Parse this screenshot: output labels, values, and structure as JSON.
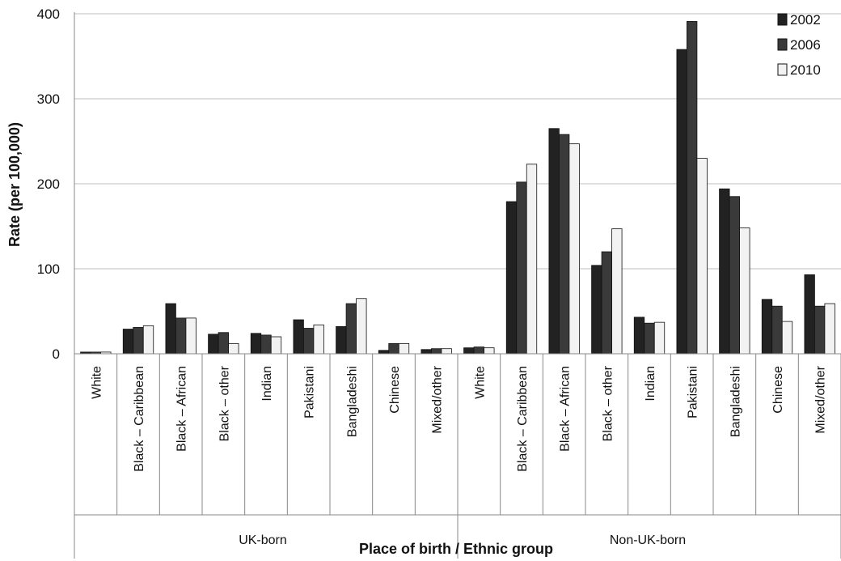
{
  "chart_data": {
    "type": "bar",
    "title": "",
    "xlabel": "Place of birth / Ethnic group",
    "ylabel": "Rate (per 100,000)",
    "ylim": [
      0,
      400
    ],
    "yticks": [
      "0",
      "100",
      "200",
      "300",
      "400"
    ],
    "grid": true,
    "legend_position": "top-right",
    "groups": [
      "UK-born",
      "Non-UK-born"
    ],
    "categories": [
      "White",
      "Black – Caribbean",
      "Black – African",
      "Black – other",
      "Indian",
      "Pakistani",
      "Bangladeshi",
      "Chinese",
      "Mixed/other",
      "White",
      "Black – Caribbean",
      "Black – African",
      "Black – other",
      "Indian",
      "Pakistani",
      "Bangladeshi",
      "Chinese",
      "Mixed/other"
    ],
    "series": [
      {
        "name": "2002",
        "color": "#222222",
        "values": [
          2,
          29,
          59,
          23,
          24,
          40,
          32,
          4,
          5,
          7,
          179,
          265,
          104,
          43,
          358,
          194,
          64,
          93
        ]
      },
      {
        "name": "2006",
        "color": "#3a3a3a",
        "values": [
          2,
          31,
          42,
          25,
          22,
          30,
          59,
          12,
          6,
          8,
          202,
          258,
          120,
          36,
          391,
          185,
          56,
          56
        ]
      },
      {
        "name": "2010",
        "color": "#f2f2f2",
        "values": [
          2,
          33,
          42,
          12,
          20,
          34,
          65,
          12,
          6,
          7,
          223,
          247,
          147,
          37,
          230,
          148,
          38,
          59
        ]
      }
    ]
  }
}
